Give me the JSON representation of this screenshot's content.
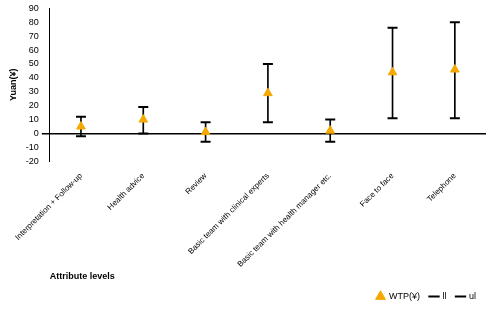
{
  "chart_data": {
    "type": "errorbar",
    "x_label": "Attribute levels",
    "y_label": "Yuan(¥)",
    "categories": [
      "Interpretation + Follow-up",
      "Health advice",
      "Review",
      "Basic team with clinical experts",
      "Basic team with health manager etc.",
      "Face to face",
      "Telephone"
    ],
    "series": [
      {
        "name": "ll",
        "color": "#000000",
        "marker": "dash",
        "values": [
          -2,
          0,
          -6,
          8,
          -6,
          11,
          11
        ]
      },
      {
        "name": "ul",
        "color": "#000000",
        "marker": "dash",
        "values": [
          12,
          19,
          8,
          50,
          10,
          76,
          80
        ]
      },
      {
        "name": "WTP(¥)",
        "color": "#f5a800",
        "marker": "triangle",
        "values": [
          5,
          10,
          1,
          29,
          2,
          44,
          46
        ]
      }
    ],
    "ylim": [
      -20,
      90
    ],
    "yticks": [
      -20,
      -10,
      0,
      10,
      20,
      30,
      40,
      50,
      60,
      70,
      80,
      90
    ],
    "grid": false,
    "legend": "bottom right"
  }
}
